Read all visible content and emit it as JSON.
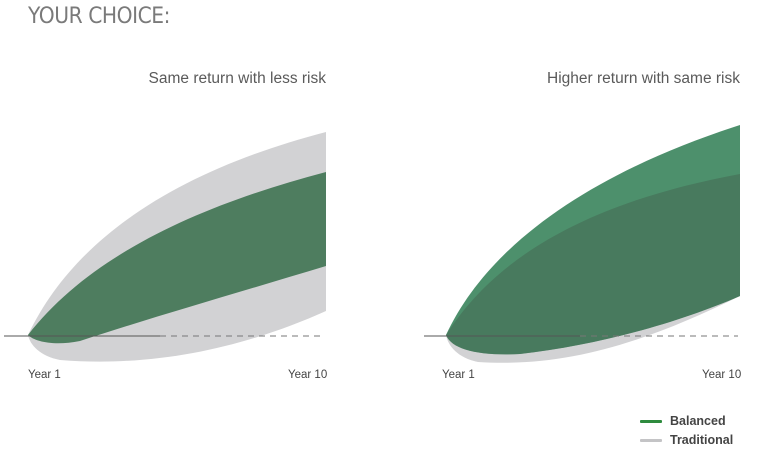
{
  "heading": "YOUR CHOICE:",
  "colors": {
    "balanced": "#2e7d45",
    "traditional": "#bdbdbf"
  },
  "legend": [
    {
      "label": "Balanced",
      "color": "#2e8b3e"
    },
    {
      "label": "Traditional",
      "color": "#c4c4c6"
    }
  ],
  "chart_data": [
    {
      "type": "area",
      "title": "Same return with less risk",
      "x_labels": [
        "Year 1",
        "Year 10"
      ],
      "series": [
        {
          "name": "Traditional"
        },
        {
          "name": "Balanced"
        }
      ]
    },
    {
      "type": "area",
      "title": "Higher return with same risk",
      "x_labels": [
        "Year 1",
        "Year 10"
      ],
      "series": [
        {
          "name": "Traditional"
        },
        {
          "name": "Balanced"
        }
      ]
    }
  ]
}
